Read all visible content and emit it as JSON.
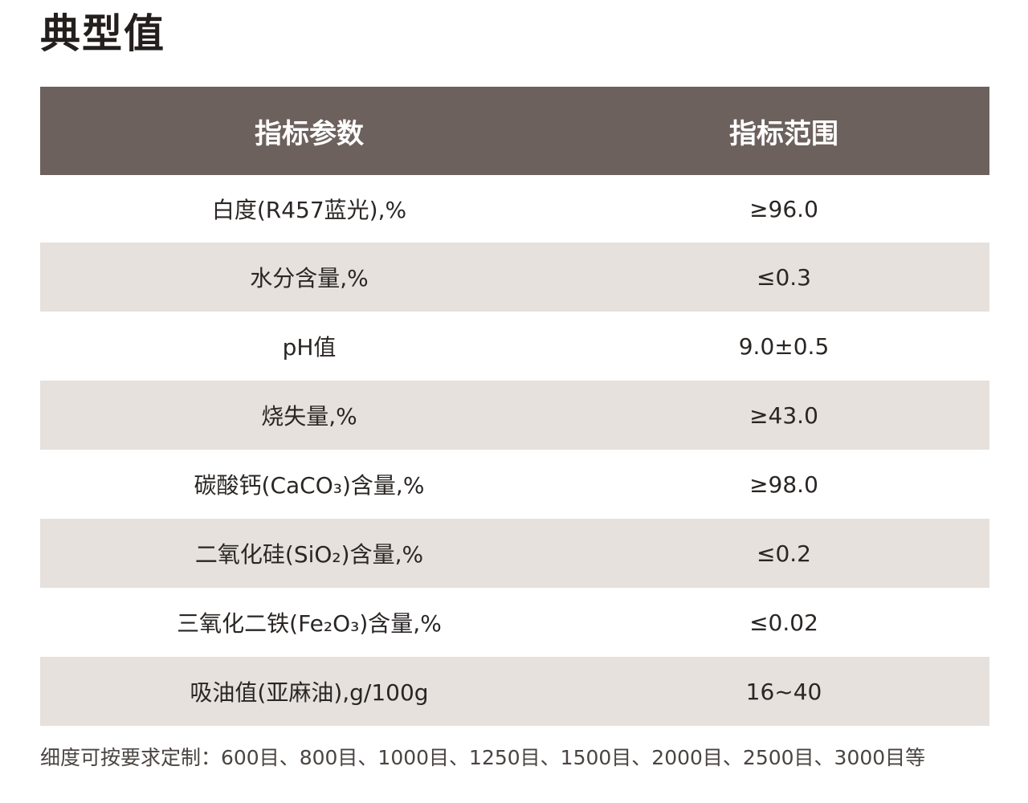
{
  "page": {
    "title": "典型值"
  },
  "table": {
    "headers": {
      "param": "指标参数",
      "range": "指标范围"
    },
    "rows": [
      {
        "param": "白度(R457蓝光),%",
        "range": "≥96.0"
      },
      {
        "param": "水分含量,%",
        "range": "≤0.3"
      },
      {
        "param": "pH值",
        "range": "9.0±0.5"
      },
      {
        "param": "烧失量,%",
        "range": "≥43.0"
      },
      {
        "param": "碳酸钙(CaCO₃)含量,%",
        "range": "≥98.0"
      },
      {
        "param": "二氧化硅(SiO₂)含量,%",
        "range": "≤0.2"
      },
      {
        "param": "三氧化二铁(Fe₂O₃)含量,%",
        "range": "≤0.02"
      },
      {
        "param": "吸油值(亚麻油),g/100g",
        "range": "16~40"
      }
    ]
  },
  "footnote": "细度可按要求定制：600目、800目、1000目、1250目、1500目、2000目、2500目、3000目等",
  "colors": {
    "header_bg": "#6c615d",
    "shaded_row_bg": "#e6e1dd",
    "plain_row_bg": "#ffffff"
  }
}
